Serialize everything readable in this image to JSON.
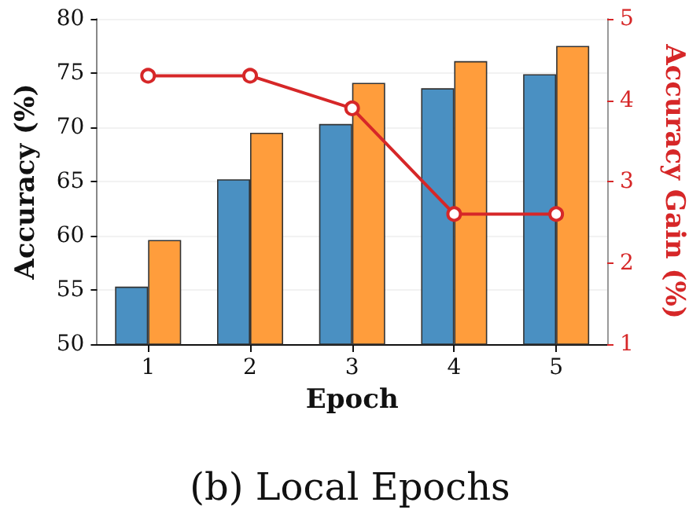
{
  "chart_data": {
    "type": "bar",
    "title": "(b) Local Epochs",
    "xlabel": "Epoch",
    "ylabel": "Accuracy (%)",
    "y2label": "Accuracy Gain (%)",
    "categories": [
      "1",
      "2",
      "3",
      "4",
      "5"
    ],
    "series": [
      {
        "color": "#4a90c2",
        "values": [
          55.3,
          65.2,
          70.3,
          73.6,
          74.9
        ]
      },
      {
        "color": "#ff9d3c",
        "values": [
          59.6,
          69.5,
          74.1,
          76.1,
          77.5
        ]
      },
      {
        "type": "line",
        "axis": "y2",
        "color": "#d62728",
        "values": [
          4.3,
          4.3,
          3.9,
          2.6,
          2.6
        ],
        "marker": "circle"
      }
    ],
    "ylim": [
      50,
      80
    ],
    "yticks": [
      50,
      55,
      60,
      65,
      70,
      75,
      80
    ],
    "y2lim": [
      1,
      5
    ],
    "y2ticks": [
      1,
      2,
      3,
      4,
      5
    ],
    "grid": "y"
  }
}
